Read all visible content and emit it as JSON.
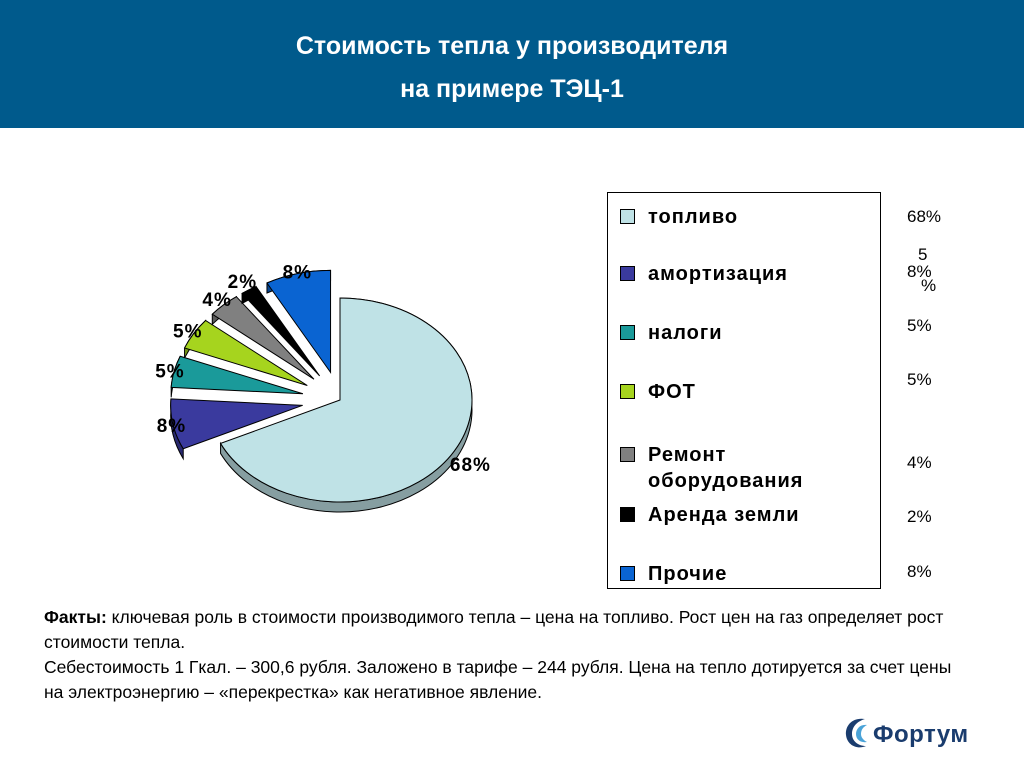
{
  "header": {
    "title_line1": "Стоимость тепла у производителя",
    "title_line2": "на примере ТЭЦ-1"
  },
  "chart_data": {
    "type": "pie",
    "exploded": true,
    "style": "3d",
    "legend_position": "right",
    "slices": [
      {
        "name": "топливо",
        "value": 68,
        "label": "68%",
        "color": "#bfe2e6"
      },
      {
        "name": "амортизация",
        "value": 8,
        "label": "8%",
        "color": "#3a3a9e"
      },
      {
        "name": "налоги",
        "value": 5,
        "label": "5%",
        "color": "#1a9a9a"
      },
      {
        "name": "ФОТ",
        "value": 5,
        "label": "5%",
        "color": "#a6d41e"
      },
      {
        "name": "Ремонт оборудования",
        "value": 4,
        "label": "4%",
        "color": "#808080"
      },
      {
        "name": "Аренда земли",
        "value": 2,
        "label": "2%",
        "color": "#000000"
      },
      {
        "name": "Прочие",
        "value": 8,
        "label": "8%",
        "color": "#0a64d2"
      }
    ]
  },
  "legend": {
    "items": [
      {
        "line1": "топливо",
        "line2": ""
      },
      {
        "line1": "амортизация",
        "line2": ""
      },
      {
        "line1": "налоги",
        "line2": ""
      },
      {
        "line1": "ФОТ",
        "line2": ""
      },
      {
        "line1": "Ремонт",
        "line2": "оборудования"
      },
      {
        "line1": "Аренда земли",
        "line2": ""
      },
      {
        "line1": "Прочие",
        "line2": ""
      }
    ]
  },
  "side_values": [
    "68%",
    "8%",
    "5%",
    "5%",
    "4%",
    "2%",
    "8%"
  ],
  "side_overlap": {
    "digit": "5",
    "percent": "%"
  },
  "facts": {
    "label": "Факты:",
    "text1": " ключевая роль в стоимости производимого тепла – цена на топливо. Рост цен на газ определяет рост стоимости тепла.",
    "text2": "Себестоимость 1 Гкал. – 300,6 рубля. Заложено в тарифе – 244 рубля. Цена на тепло дотируется за счет цены на электроэнергию – «перекрестка» как негативное явление."
  },
  "logo": {
    "text": "Фортум",
    "color": "#1a3c6e",
    "accent": "#4aa3d8"
  }
}
